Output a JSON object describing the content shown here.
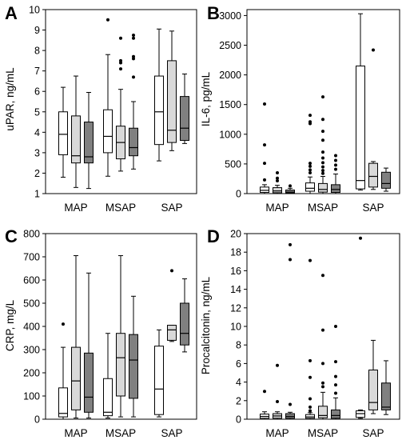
{
  "chart_data": [
    {
      "panel": "A",
      "type": "boxplot",
      "ylabel": "uPAR, ng/mL",
      "ylim": [
        1,
        10
      ],
      "yticks": [
        1,
        2,
        3,
        4,
        5,
        6,
        7,
        8,
        9,
        10
      ],
      "categories": [
        "MAP",
        "MSAP",
        "SAP"
      ],
      "box_fills": [
        "#ffffff",
        "#d9d9d9",
        "#808080"
      ],
      "groups": [
        {
          "category": "MAP",
          "boxes": [
            {
              "whisker_low": 1.8,
              "q1": 2.9,
              "median": 3.9,
              "q3": 5.0,
              "whisker_high": 6.2,
              "outliers": []
            },
            {
              "whisker_low": 1.3,
              "q1": 2.5,
              "median": 2.85,
              "q3": 4.8,
              "whisker_high": 6.75,
              "outliers": []
            },
            {
              "whisker_low": 1.25,
              "q1": 2.5,
              "median": 2.8,
              "q3": 4.5,
              "whisker_high": 5.95,
              "outliers": []
            }
          ]
        },
        {
          "category": "MSAP",
          "boxes": [
            {
              "whisker_low": 1.85,
              "q1": 3.0,
              "median": 3.8,
              "q3": 5.1,
              "whisker_high": 7.8,
              "outliers": [
                9.5
              ]
            },
            {
              "whisker_low": 2.1,
              "q1": 2.7,
              "median": 3.5,
              "q3": 4.3,
              "whisker_high": 6.1,
              "outliers": [
                7.1,
                7.4,
                7.5,
                8.6
              ]
            },
            {
              "whisker_low": 2.2,
              "q1": 2.85,
              "median": 3.25,
              "q3": 4.2,
              "whisker_high": 5.5,
              "outliers": [
                6.7,
                7.6,
                7.7,
                8.6,
                8.75
              ]
            }
          ]
        },
        {
          "category": "SAP",
          "boxes": [
            {
              "whisker_low": 2.6,
              "q1": 3.4,
              "median": 5.0,
              "q3": 6.75,
              "whisker_high": 9.05,
              "outliers": []
            },
            {
              "whisker_low": 3.1,
              "q1": 3.5,
              "median": 4.1,
              "q3": 7.5,
              "whisker_high": 8.95,
              "outliers": []
            },
            {
              "whisker_low": 3.45,
              "q1": 3.6,
              "median": 4.2,
              "q3": 5.75,
              "whisker_high": 6.85,
              "outliers": []
            }
          ]
        }
      ]
    },
    {
      "panel": "B",
      "type": "boxplot",
      "ylabel": "IL-6, pg/mL",
      "ylim": [
        0,
        3100
      ],
      "yticks": [
        0,
        500,
        1000,
        1500,
        2000,
        2500,
        3000
      ],
      "categories": [
        "MAP",
        "MSAP",
        "SAP"
      ],
      "box_fills": [
        "#ffffff",
        "#d9d9d9",
        "#808080"
      ],
      "groups": [
        {
          "category": "MAP",
          "boxes": [
            {
              "whisker_low": 0,
              "q1": 20,
              "median": 55,
              "q3": 110,
              "whisker_high": 150,
              "outliers": [
                230,
                510,
                820,
                1510
              ]
            },
            {
              "whisker_low": 0,
              "q1": 15,
              "median": 45,
              "q3": 100,
              "whisker_high": 140,
              "outliers": [
                215,
                260,
                350
              ]
            },
            {
              "whisker_low": 0,
              "q1": 10,
              "median": 25,
              "q3": 60,
              "whisker_high": 90,
              "outliers": [
                130
              ]
            }
          ]
        },
        {
          "category": "MSAP",
          "boxes": [
            {
              "whisker_low": 0,
              "q1": 40,
              "median": 90,
              "q3": 180,
              "whisker_high": 280,
              "outliers": [
                350,
                400,
                460,
                510,
                1180,
                1210,
                1320
              ]
            },
            {
              "whisker_low": 0,
              "q1": 25,
              "median": 70,
              "q3": 170,
              "whisker_high": 290,
              "outliers": [
                340,
                390,
                450,
                520,
                600,
                700,
                900,
                1050,
                1250,
                1630
              ]
            },
            {
              "whisker_low": 0,
              "q1": 20,
              "median": 70,
              "q3": 150,
              "whisker_high": 330,
              "outliers": [
                410,
                480,
                560,
                640
              ]
            }
          ]
        },
        {
          "category": "SAP",
          "boxes": [
            {
              "whisker_low": 60,
              "q1": 80,
              "median": 220,
              "q3": 2150,
              "whisker_high": 3030,
              "outliers": []
            },
            {
              "whisker_low": 70,
              "q1": 110,
              "median": 290,
              "q3": 510,
              "whisker_high": 540,
              "outliers": [
                2420
              ]
            },
            {
              "whisker_low": 40,
              "q1": 90,
              "median": 170,
              "q3": 360,
              "whisker_high": 430,
              "outliers": []
            }
          ]
        }
      ]
    },
    {
      "panel": "C",
      "type": "boxplot",
      "ylabel": "CRP, mg/L",
      "ylim": [
        0,
        800
      ],
      "yticks": [
        0,
        100,
        200,
        300,
        400,
        500,
        600,
        700,
        800
      ],
      "categories": [
        "MAP",
        "MSAP",
        "SAP"
      ],
      "box_fills": [
        "#ffffff",
        "#d9d9d9",
        "#808080"
      ],
      "groups": [
        {
          "category": "MAP",
          "boxes": [
            {
              "whisker_low": 0,
              "q1": 10,
              "median": 25,
              "q3": 135,
              "whisker_high": 310,
              "outliers": [
                410
              ]
            },
            {
              "whisker_low": 5,
              "q1": 40,
              "median": 165,
              "q3": 310,
              "whisker_high": 705,
              "outliers": []
            },
            {
              "whisker_low": 5,
              "q1": 30,
              "median": 95,
              "q3": 285,
              "whisker_high": 630,
              "outliers": []
            }
          ]
        },
        {
          "category": "MSAP",
          "boxes": [
            {
              "whisker_low": 5,
              "q1": 15,
              "median": 30,
              "q3": 175,
              "whisker_high": 370,
              "outliers": []
            },
            {
              "whisker_low": 10,
              "q1": 100,
              "median": 265,
              "q3": 370,
              "whisker_high": 705,
              "outliers": []
            },
            {
              "whisker_low": 10,
              "q1": 90,
              "median": 255,
              "q3": 365,
              "whisker_high": 530,
              "outliers": []
            }
          ]
        },
        {
          "category": "SAP",
          "boxes": [
            {
              "whisker_low": 10,
              "q1": 20,
              "median": 130,
              "q3": 315,
              "whisker_high": 385,
              "outliers": []
            },
            {
              "whisker_low": 335,
              "q1": 340,
              "median": 385,
              "q3": 405,
              "whisker_high": 405,
              "outliers": [
                640
              ]
            },
            {
              "whisker_low": 290,
              "q1": 320,
              "median": 370,
              "q3": 500,
              "whisker_high": 605,
              "outliers": []
            }
          ]
        }
      ]
    },
    {
      "panel": "D",
      "type": "boxplot",
      "ylabel": "Procalcitonin, ng/mL",
      "ylim": [
        0,
        20
      ],
      "yticks": [
        0,
        2,
        4,
        6,
        8,
        10,
        12,
        14,
        16,
        18,
        20
      ],
      "categories": [
        "MAP",
        "MSAP",
        "SAP"
      ],
      "box_fills": [
        "#ffffff",
        "#d9d9d9",
        "#808080"
      ],
      "groups": [
        {
          "category": "MAP",
          "boxes": [
            {
              "whisker_low": 0,
              "q1": 0.1,
              "median": 0.3,
              "q3": 0.55,
              "whisker_high": 0.8,
              "outliers": [
                3.0
              ]
            },
            {
              "whisker_low": 0,
              "q1": 0.1,
              "median": 0.35,
              "q3": 0.6,
              "whisker_high": 0.8,
              "outliers": [
                1.9,
                5.8
              ]
            },
            {
              "whisker_low": 0,
              "q1": 0.1,
              "median": 0.3,
              "q3": 0.6,
              "whisker_high": 0.75,
              "outliers": [
                1.6,
                17.2,
                18.8
              ]
            }
          ]
        },
        {
          "category": "MSAP",
          "boxes": [
            {
              "whisker_low": 0,
              "q1": 0.1,
              "median": 0.25,
              "q3": 0.5,
              "whisker_high": 0.7,
              "outliers": [
                0.9,
                1.3,
                2.2,
                4.5,
                6.3,
                17.1
              ]
            },
            {
              "whisker_low": 0,
              "q1": 0.15,
              "median": 0.4,
              "q3": 1.4,
              "whisker_high": 2.9,
              "outliers": [
                3.5,
                3.9,
                6.0,
                9.6,
                15.5
              ]
            },
            {
              "whisker_low": 0,
              "q1": 0.1,
              "median": 0.4,
              "q3": 1.0,
              "whisker_high": 2.3,
              "outliers": [
                2.8,
                3.7,
                4.6,
                6.2,
                10.0
              ]
            }
          ]
        },
        {
          "category": "SAP",
          "boxes": [
            {
              "whisker_low": 0.1,
              "q1": 0.2,
              "median": 0.6,
              "q3": 0.9,
              "whisker_high": 1.0,
              "outliers": [
                19.5
              ]
            },
            {
              "whisker_low": 0.6,
              "q1": 1.0,
              "median": 1.8,
              "q3": 5.3,
              "whisker_high": 8.5,
              "outliers": []
            },
            {
              "whisker_low": 0.5,
              "q1": 1.0,
              "median": 1.3,
              "q3": 3.9,
              "whisker_high": 6.3,
              "outliers": []
            }
          ]
        }
      ]
    }
  ]
}
